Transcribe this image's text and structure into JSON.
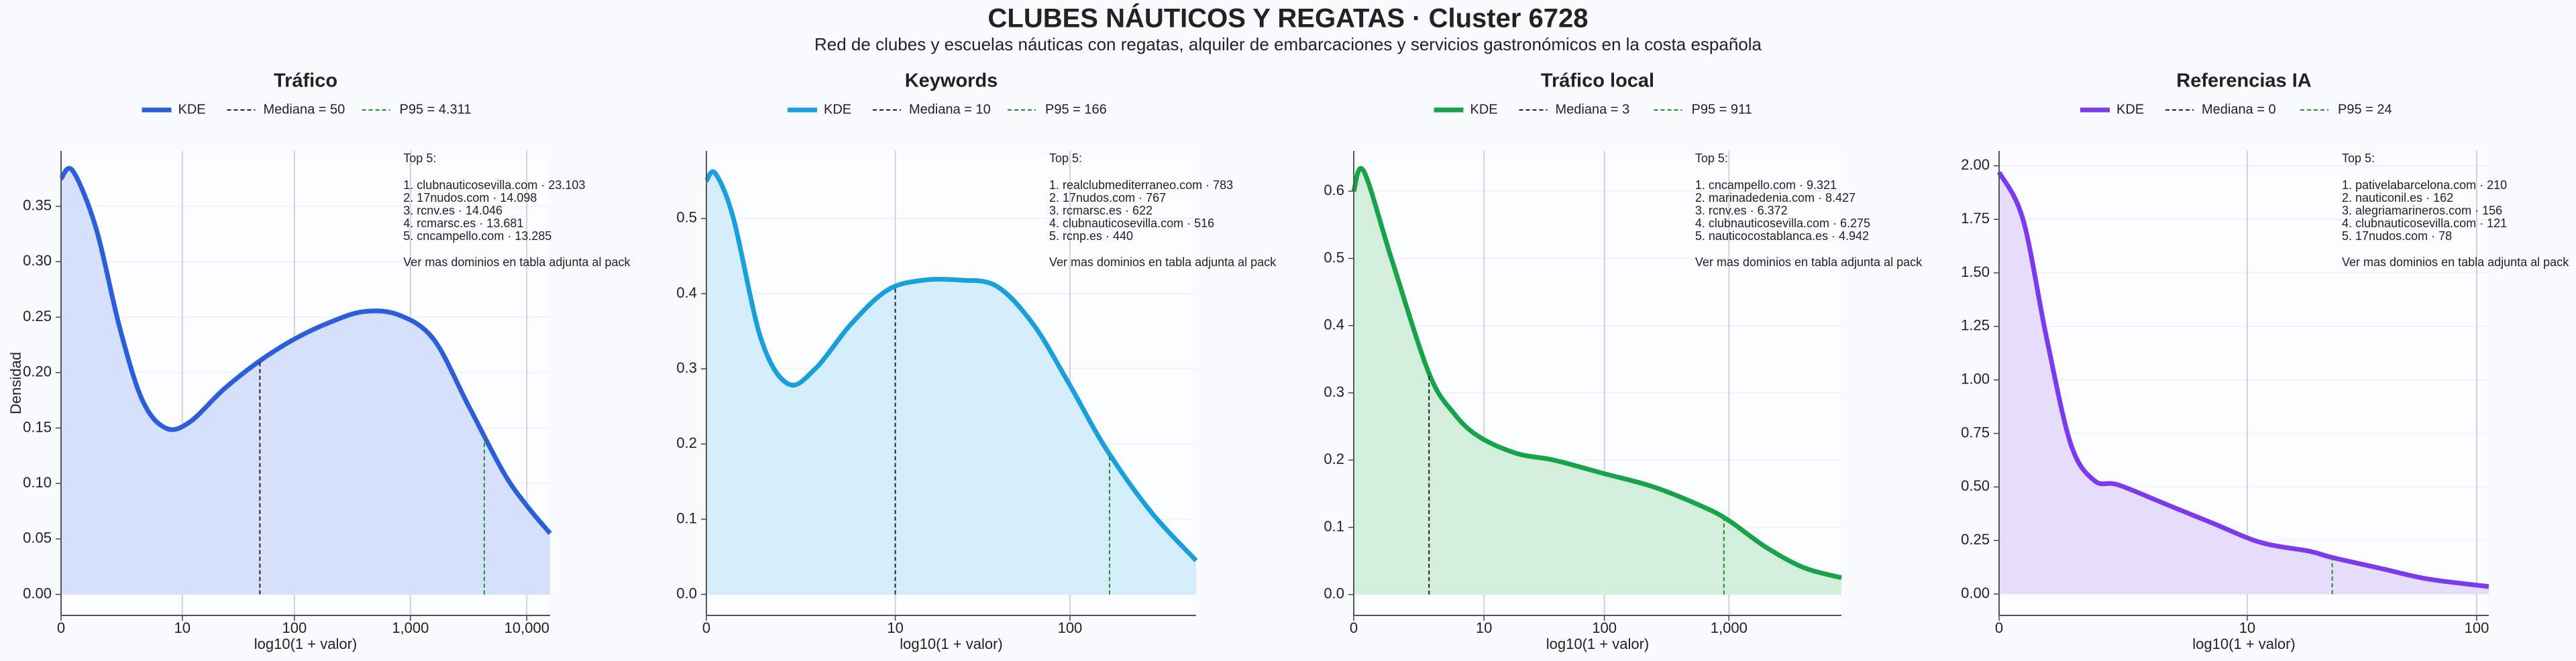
{
  "title": "CLUBES NÁUTICOS Y REGATAS · Cluster 6728",
  "subtitle": "Red de clubes y escuelas náuticas con regatas, alquiler de embarcaciones y servicios gastronómicos en la costa española",
  "chart_data": [
    {
      "type": "area",
      "title": "Tráfico",
      "xlabel": "log10(1 + valor)",
      "ylabel": "Densidad",
      "xscale": "log1p",
      "grid": true,
      "x": [
        0,
        0.26,
        1,
        2.2,
        4,
        6.9,
        11.6,
        24,
        49,
        99,
        199,
        397,
        793,
        1584,
        3161,
        6309,
        9999,
        15848
      ],
      "series": [
        {
          "name": "KDE",
          "color": "#2b5fd9",
          "fill": "#d6e0fa",
          "values": [
            0.375,
            0.382,
            0.33,
            0.24,
            0.175,
            0.15,
            0.155,
            0.185,
            0.21,
            0.23,
            0.245,
            0.255,
            0.252,
            0.23,
            0.17,
            0.11,
            0.08,
            0.055
          ]
        }
      ],
      "median": {
        "value": 50,
        "label": "Mediana = 50",
        "color": "#222222"
      },
      "p95": {
        "value": 4311,
        "label": "P95 = 4.311",
        "color": "#1e8f2e"
      },
      "xlim": [
        0,
        15848
      ],
      "xticks": [
        0,
        10,
        100,
        {
          "value": 1000,
          "label": "1,000"
        },
        {
          "value": 10000,
          "label": "10,000"
        }
      ],
      "ylim": [
        -0.019,
        0.4
      ],
      "yticks": [
        {
          "value": 0,
          "label": "0.00"
        },
        0.05,
        {
          "value": 0.1,
          "label": "0.10"
        },
        0.15,
        {
          "value": 0.2,
          "label": "0.20"
        },
        0.25,
        {
          "value": 0.3,
          "label": "0.30"
        },
        0.35
      ],
      "annotation": {
        "title": "Top 5:",
        "items": [
          "1. clubnauticosevilla.com · 23.103",
          "2. 17nudos.com · 14.098",
          "3. rcnv.es · 14.046",
          "4. rcmarsc.es · 13.681",
          "5. cncampello.com · 13.285"
        ],
        "footer": "Ver mas dominios en tabla adjunta al pack"
      }
    },
    {
      "type": "area",
      "title": "Keywords",
      "xlabel": "log10(1 + valor)",
      "xscale": "log1p",
      "grid": true,
      "x": [
        0,
        0.12,
        0.41,
        1,
        1.82,
        2.98,
        5.3,
        9,
        14.8,
        24.1,
        38.8,
        62.1,
        99,
        157.5,
        281,
        500
      ],
      "series": [
        {
          "name": "KDE",
          "color": "#1a9fdd",
          "fill": "#d3eefa",
          "values": [
            0.55,
            0.56,
            0.5,
            0.34,
            0.28,
            0.3,
            0.36,
            0.405,
            0.418,
            0.418,
            0.41,
            0.36,
            0.28,
            0.195,
            0.11,
            0.045
          ]
        }
      ],
      "median": {
        "value": 10,
        "label": "Mediana = 10",
        "color": "#222222"
      },
      "p95": {
        "value": 166,
        "label": "P95 = 166",
        "color": "#1e8f2e"
      },
      "xlim": [
        0,
        500
      ],
      "xticks": [
        0,
        10,
        100
      ],
      "ylim": [
        -0.028,
        0.59
      ],
      "yticks": [
        {
          "value": 0,
          "label": "0.0"
        },
        0.1,
        0.2,
        0.3,
        0.4,
        0.5
      ],
      "annotation": {
        "title": "Top 5:",
        "items": [
          "1. realclubmediterraneo.com · 783",
          "2. 17nudos.com · 767",
          "3. rcmarsc.es · 622",
          "4. clubnauticosevilla.com · 516",
          "5. rcnp.es · 440"
        ],
        "footer": "Ver mas dominios en tabla adjunta al pack"
      }
    },
    {
      "type": "area",
      "title": "Tráfico local",
      "xlabel": "log10(1 + valor)",
      "xscale": "log1p",
      "grid": true,
      "x": [
        0,
        0.2,
        1,
        2.98,
        5.3,
        9,
        19,
        38.8,
        99,
        250,
        630,
        999,
        1994,
        3980,
        7942
      ],
      "series": [
        {
          "name": "KDE",
          "color": "#16a34a",
          "fill": "#d3efdc",
          "values": [
            0.6,
            0.63,
            0.5,
            0.33,
            0.27,
            0.235,
            0.21,
            0.2,
            0.18,
            0.16,
            0.13,
            0.11,
            0.07,
            0.04,
            0.025
          ]
        }
      ],
      "median": {
        "value": 3,
        "label": "Mediana = 3",
        "color": "#222222"
      },
      "p95": {
        "value": 911,
        "label": "P95 = 911",
        "color": "#1e8f2e"
      },
      "xlim": [
        0,
        7942
      ],
      "xticks": [
        0,
        10,
        100,
        {
          "value": 1000,
          "label": "1,000"
        }
      ],
      "ylim": [
        -0.031,
        0.66
      ],
      "yticks": [
        {
          "value": 0,
          "label": "0.0"
        },
        0.1,
        0.2,
        0.3,
        0.4,
        0.5,
        0.6
      ],
      "annotation": {
        "title": "Top 5:",
        "items": [
          "1. cncampello.com · 9.321",
          "2. marinadedenia.com · 8.427",
          "3. rcnv.es · 6.372",
          "4. clubnauticosevilla.com · 6.275",
          "5. nauticocostablanca.es · 4.942"
        ],
        "footer": "Ver mas dominios en tabla adjunta al pack"
      }
    },
    {
      "type": "area",
      "title": "Referencias IA",
      "xlabel": "log10(1 + valor)",
      "xscale": "log1p",
      "grid": true,
      "x": [
        0,
        0.26,
        0.58,
        1,
        1.51,
        2.16,
        4,
        6.9,
        11.6,
        19,
        24.1,
        38.8,
        62.1,
        112.5
      ],
      "series": [
        {
          "name": "KDE",
          "color": "#7c3aed",
          "fill": "#e6dcfb",
          "values": [
            1.97,
            1.75,
            1.2,
            0.7,
            0.53,
            0.51,
            0.42,
            0.33,
            0.24,
            0.2,
            0.17,
            0.12,
            0.07,
            0.035
          ]
        }
      ],
      "median": {
        "value": 0,
        "label": "Mediana = 0",
        "color": "#222222"
      },
      "p95": {
        "value": 24,
        "label": "P95 = 24",
        "color": "#1e8f2e"
      },
      "xlim": [
        0,
        112.5
      ],
      "xticks": [
        0,
        10,
        100
      ],
      "ylim": [
        -0.1,
        2.07
      ],
      "yticks": [
        {
          "value": 0,
          "label": "0.00"
        },
        0.25,
        {
          "value": 0.5,
          "label": "0.50"
        },
        0.75,
        {
          "value": 1,
          "label": "1.00"
        },
        1.25,
        {
          "value": 1.5,
          "label": "1.50"
        },
        1.75,
        {
          "value": 2,
          "label": "2.00"
        }
      ],
      "annotation": {
        "title": "Top 5:",
        "items": [
          "1. pativelabarcelona.com · 210",
          "2. nauticonil.es · 162",
          "3. alegriamarineros.com · 156",
          "4. clubnauticosevilla.com · 121",
          "5. 17nudos.com · 78"
        ],
        "footer": "Ver mas dominios en tabla adjunta al pack"
      }
    }
  ]
}
